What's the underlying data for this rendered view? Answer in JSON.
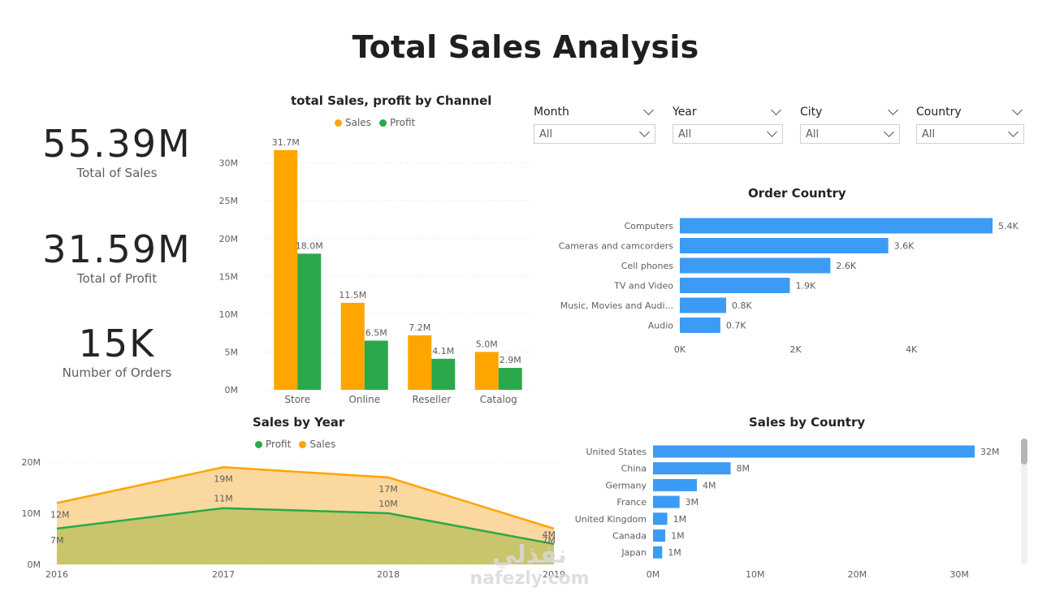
{
  "title": "Total Sales Analysis",
  "kpis": [
    {
      "value": "55.39M",
      "label": "Total of Sales"
    },
    {
      "value": "31.59M",
      "label": "Total of Profit"
    },
    {
      "value": "15K",
      "label": "Number of Orders"
    }
  ],
  "slicers": [
    {
      "label": "Month",
      "value": "All"
    },
    {
      "label": "Year",
      "value": "All"
    },
    {
      "label": "City",
      "value": "All"
    },
    {
      "label": "Country",
      "value": "All"
    }
  ],
  "colors": {
    "sales": "#FFA500",
    "profit": "#2AA84A",
    "bar": "#3C9BF5"
  },
  "watermark": {
    "arabic": "نفذلي",
    "latin": "nafezly.com"
  },
  "chart_data": [
    {
      "id": "channel",
      "type": "bar",
      "title": "total Sales, profit by Channel",
      "categories": [
        "Store",
        "Online",
        "Reseller",
        "Catalog"
      ],
      "series": [
        {
          "name": "Sales",
          "values": [
            31.7,
            11.5,
            7.2,
            5.0
          ],
          "labels": [
            "31.7M",
            "11.5M",
            "7.2M",
            "5.0M"
          ]
        },
        {
          "name": "Profit",
          "values": [
            18.0,
            6.5,
            4.1,
            2.9
          ],
          "labels": [
            "18.0M",
            "6.5M",
            "4.1M",
            "2.9M"
          ]
        }
      ],
      "yticks": [
        0,
        5,
        10,
        15,
        20,
        25,
        30
      ],
      "ytick_labels": [
        "0M",
        "5M",
        "10M",
        "15M",
        "20M",
        "25M",
        "30M"
      ],
      "ylim": [
        0,
        32
      ],
      "grid": true,
      "legend": "top"
    },
    {
      "id": "order_country",
      "type": "bar",
      "orientation": "horizontal",
      "title": "Order Country",
      "categories": [
        "Computers",
        "Cameras and camcorders",
        "Cell phones",
        "TV and Video",
        "Music, Movies and Audi...",
        "Audio"
      ],
      "values": [
        5.4,
        3.6,
        2.6,
        1.9,
        0.8,
        0.7
      ],
      "labels": [
        "5.4K",
        "3.6K",
        "2.6K",
        "1.9K",
        "0.8K",
        "0.7K"
      ],
      "xticks": [
        0,
        2,
        4
      ],
      "xtick_labels": [
        "0K",
        "2K",
        "4K"
      ],
      "xlim": [
        0,
        5.4
      ]
    },
    {
      "id": "sales_by_year",
      "type": "area",
      "title": "Sales by Year",
      "x": [
        "2016",
        "2017",
        "2018",
        "2019"
      ],
      "series": [
        {
          "name": "Profit",
          "values": [
            7,
            11,
            10,
            4
          ],
          "labels": [
            "7M",
            "11M",
            "10M",
            "4M"
          ]
        },
        {
          "name": "Sales",
          "values": [
            12,
            19,
            17,
            7
          ],
          "labels": [
            "12M",
            "19M",
            "17M",
            "7M"
          ]
        }
      ],
      "yticks": [
        0,
        10,
        20
      ],
      "ytick_labels": [
        "0M",
        "10M",
        "20M"
      ],
      "ylim": [
        0,
        20
      ],
      "legend": "top"
    },
    {
      "id": "sales_by_country",
      "type": "bar",
      "orientation": "horizontal",
      "title": "Sales by Country",
      "categories": [
        "United States",
        "China",
        "Germany",
        "France",
        "United Kingdom",
        "Canada",
        "Japan"
      ],
      "values": [
        31.5,
        7.6,
        4.3,
        2.6,
        1.4,
        1.2,
        0.9
      ],
      "labels": [
        "32M",
        "8M",
        "4M",
        "3M",
        "1M",
        "1M",
        "1M"
      ],
      "xticks": [
        0,
        10,
        20,
        30
      ],
      "xtick_labels": [
        "0M",
        "10M",
        "20M",
        "30M"
      ],
      "xlim": [
        0,
        31.5
      ]
    }
  ]
}
